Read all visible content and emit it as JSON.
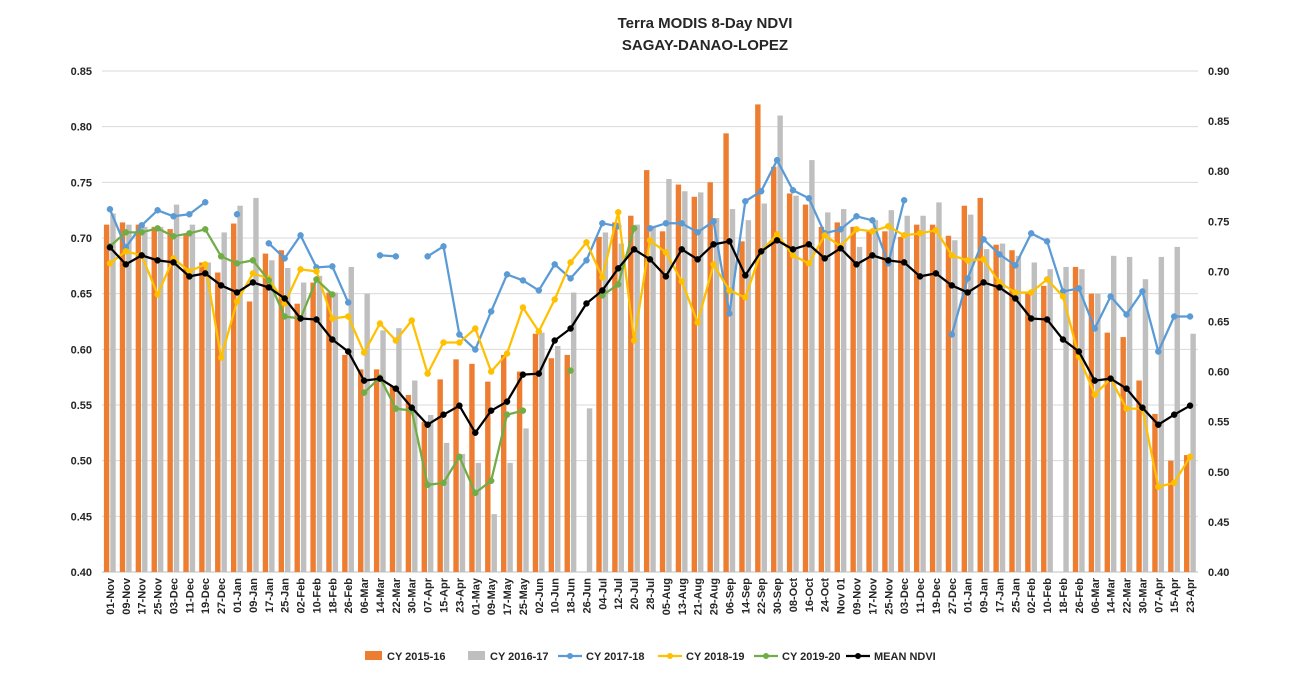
{
  "chart_data": {
    "type": "bar+line",
    "title": "Terra MODIS 8-Day  NDVI",
    "subtitle": "SAGAY-DANAO-LOPEZ",
    "ylim_left": [
      0.4,
      0.85
    ],
    "ylim_right": [
      0.4,
      0.9
    ],
    "yticks_left": [
      "0.40",
      "0.45",
      "0.50",
      "0.55",
      "0.60",
      "0.65",
      "0.70",
      "0.75",
      "0.80",
      "0.85"
    ],
    "yticks_right": [
      "0.40",
      "0.45",
      "0.50",
      "0.55",
      "0.60",
      "0.65",
      "0.70",
      "0.75",
      "0.80",
      "0.85",
      "0.90"
    ],
    "grid": true,
    "legend_position": "bottom",
    "categories": [
      "01-Nov",
      "09-Nov",
      "17-Nov",
      "25-Nov",
      "03-Dec",
      "11-Dec",
      "19-Dec",
      "27-Dec",
      "01-Jan",
      "09-Jan",
      "17-Jan",
      "25-Jan",
      "02-Feb",
      "10-Feb",
      "18-Feb",
      "26-Feb",
      "06-Mar",
      "14-Mar",
      "22-Mar",
      "30-Mar",
      "07-Apr",
      "15-Apr",
      "23-Apr",
      "01-May",
      "09-May",
      "17-May",
      "25-May",
      "02-Jun",
      "10-Jun",
      "18-Jun",
      "26-Jun",
      "04-Jul",
      "12-Jul",
      "20-Jul",
      "28-Jul",
      "05-Aug",
      "13-Aug",
      "21-Aug",
      "29-Aug",
      "06-Sep",
      "14-Sep",
      "22-Sep",
      "30-Sep",
      "08-Oct",
      "16-Oct",
      "24-Oct",
      "Nov 01",
      "09-Nov",
      "17-Nov",
      "25-Nov",
      "03-Dec",
      "11-Dec",
      "19-Dec",
      "27-Dec",
      "01-Jan",
      "09-Jan",
      "17-Jan",
      "25-Jan",
      "02-Feb",
      "10-Feb",
      "18-Feb",
      "26-Feb",
      "06-Mar",
      "14-Mar",
      "22-Mar",
      "30-Mar",
      "07-Apr",
      "15-Apr",
      "23-Apr"
    ],
    "bar_series": [
      {
        "name": "CY 2015-16",
        "color": "#ed7d31",
        "axis": "left",
        "values": [
          0.712,
          0.714,
          0.712,
          0.71,
          0.708,
          0.704,
          0.678,
          0.669,
          0.713,
          0.643,
          0.686,
          0.689,
          0.641,
          0.66,
          0.651,
          0.595,
          0.582,
          0.582,
          0.567,
          0.559,
          0.535,
          0.573,
          0.591,
          0.587,
          0.571,
          0.595,
          0.58,
          0.614,
          0.592,
          0.595,
          null,
          0.701,
          0.714,
          0.72,
          0.761,
          0.706,
          0.748,
          0.737,
          0.75,
          0.794,
          0.697,
          0.82,
          0.764,
          0.74,
          0.73,
          0.71,
          0.714,
          0.71,
          0.706,
          0.706,
          0.701,
          0.712,
          0.712,
          0.702,
          0.729,
          0.736,
          0.694,
          0.689,
          0.651,
          0.657,
          null,
          0.674,
          0.65,
          0.615,
          0.611,
          0.572,
          0.542,
          0.5,
          0.505
        ]
      },
      {
        "name": "CY 2016-17",
        "color": "#bfbfbf",
        "axis": "left",
        "values": [
          0.722,
          0.712,
          0.71,
          0.71,
          0.73,
          0.712,
          0.678,
          0.705,
          0.729,
          0.736,
          0.68,
          0.673,
          0.66,
          0.666,
          0.651,
          0.674,
          0.65,
          0.617,
          0.619,
          0.572,
          0.541,
          0.516,
          0.506,
          0.498,
          0.452,
          0.498,
          0.529,
          0.615,
          0.603,
          0.651,
          0.547,
          0.705,
          0.695,
          0.712,
          0.711,
          0.753,
          0.742,
          0.741,
          0.718,
          0.726,
          0.716,
          0.731,
          0.81,
          0.738,
          0.77,
          0.723,
          0.726,
          0.692,
          0.716,
          0.725,
          0.72,
          0.72,
          0.732,
          0.698,
          0.721,
          0.69,
          0.695,
          0.684,
          0.678,
          0.672,
          0.674,
          0.672,
          0.65,
          0.684,
          0.683,
          0.663,
          0.683,
          0.692,
          0.614
        ]
      }
    ],
    "line_series": [
      {
        "name": "CY 2017-18",
        "color": "#5b9bd5",
        "axis": "right",
        "values": [
          0.762,
          0.724,
          0.746,
          0.761,
          0.755,
          0.757,
          0.769,
          null,
          0.757,
          null,
          0.728,
          0.713,
          0.736,
          0.704,
          0.705,
          0.669,
          null,
          0.716,
          0.715,
          null,
          0.715,
          0.725,
          0.637,
          0.622,
          0.66,
          0.697,
          0.691,
          0.681,
          0.707,
          0.693,
          0.711,
          0.748,
          0.745,
          null,
          0.743,
          0.748,
          0.748,
          0.739,
          0.75,
          0.658,
          0.77,
          0.78,
          0.811,
          0.781,
          0.773,
          0.738,
          0.742,
          0.755,
          0.751,
          0.708,
          0.771,
          null,
          null,
          0.637,
          0.693,
          0.732,
          0.717,
          0.706,
          0.738,
          0.73,
          0.68,
          0.683,
          0.643,
          0.675,
          0.657,
          0.68,
          0.62,
          0.655,
          0.655
        ]
      },
      {
        "name": "CY 2018-19",
        "color": "#ffc000",
        "axis": "right",
        "values": [
          0.708,
          0.72,
          0.716,
          0.677,
          0.713,
          0.7,
          0.707,
          0.614,
          0.67,
          0.698,
          0.693,
          0.668,
          0.702,
          0.7,
          0.653,
          0.655,
          0.619,
          0.648,
          0.631,
          0.651,
          0.598,
          0.629,
          0.629,
          0.643,
          0.6,
          0.618,
          0.664,
          0.64,
          0.672,
          0.709,
          0.729,
          0.694,
          0.759,
          0.631,
          0.731,
          0.719,
          0.69,
          0.649,
          0.707,
          0.681,
          0.674,
          0.72,
          0.737,
          0.716,
          0.708,
          0.736,
          0.725,
          0.742,
          0.74,
          0.745,
          0.736,
          0.738,
          0.741,
          0.716,
          0.711,
          0.712,
          0.689,
          0.679,
          0.679,
          0.692,
          0.675,
          0.615,
          0.577,
          0.593,
          0.563,
          0.563,
          0.485,
          0.489,
          0.515
        ]
      },
      {
        "name": "CY 2019-20",
        "color": "#70ad47",
        "axis": "right",
        "values": [
          0.725,
          0.739,
          0.739,
          0.743,
          0.735,
          0.738,
          0.742,
          0.715,
          0.708,
          0.711,
          0.691,
          0.655,
          0.653,
          0.692,
          0.677,
          null,
          0.579,
          0.594,
          0.563,
          0.561,
          0.487,
          0.489,
          0.515,
          0.479,
          0.491,
          0.557,
          0.561,
          null,
          null,
          0.601,
          null,
          0.676,
          0.687,
          0.743,
          null,
          null,
          null,
          null,
          null,
          null,
          null,
          null,
          null,
          null,
          null,
          null,
          null,
          null,
          null,
          null,
          null,
          null,
          null,
          null,
          null,
          null,
          null,
          null,
          null,
          null,
          null,
          null,
          null,
          null,
          null,
          null,
          null,
          null,
          null
        ]
      },
      {
        "name": "MEAN NDVI",
        "color": "#000000",
        "axis": "right",
        "values": [
          0.724,
          0.707,
          0.716,
          0.711,
          0.709,
          0.695,
          0.698,
          0.686,
          0.679,
          0.689,
          0.684,
          0.673,
          0.653,
          0.652,
          0.632,
          0.62,
          0.591,
          0.593,
          0.583,
          0.564,
          0.547,
          0.557,
          0.566,
          0.539,
          0.561,
          0.57,
          0.597,
          0.598,
          0.631,
          0.643,
          0.668,
          0.681,
          0.703,
          0.722,
          0.712,
          0.695,
          0.722,
          0.712,
          0.727,
          0.73,
          0.696,
          0.72,
          0.731,
          0.722,
          0.727,
          0.713,
          0.723,
          0.707,
          0.716,
          0.711,
          0.709,
          0.695,
          0.698,
          0.686,
          0.679,
          0.689,
          0.684,
          0.673,
          0.653,
          0.652,
          0.632,
          0.62,
          0.591,
          0.593,
          0.583,
          0.564,
          0.547,
          0.557,
          0.566
        ]
      }
    ],
    "legend": [
      "CY 2015-16",
      "CY 2016-17",
      "CY 2017-18",
      "CY 2018-19",
      "CY 2019-20",
      "MEAN NDVI"
    ]
  }
}
